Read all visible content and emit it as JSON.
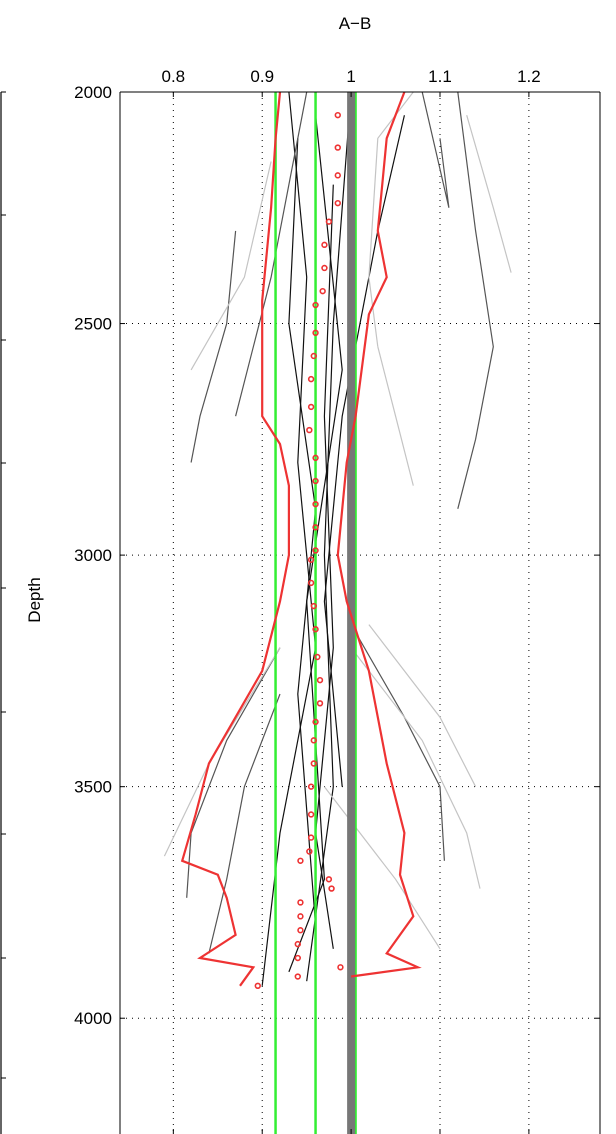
{
  "chart_data": {
    "type": "line",
    "title": "A−B",
    "ylabel": "Depth",
    "x_ticks": [
      "0.8",
      "0.9",
      "1",
      "1.1",
      "1.2"
    ],
    "y_ticks": [
      "2000",
      "2500",
      "3000",
      "3500",
      "4000"
    ],
    "xlim": [
      0.74,
      1.28
    ],
    "ylim": [
      2000,
      4250
    ],
    "y_reversed": true,
    "x_axis_position": "top",
    "grid": "dotted",
    "legend": "none",
    "colors": {
      "red": "#ee3333",
      "green": "#33ee33",
      "gray": "#777777",
      "dark": "#111111",
      "mid": "#555555",
      "light": "#c4c4c4"
    },
    "vertical_lines": [
      {
        "x": 0.915,
        "color": "green"
      },
      {
        "x": 0.96,
        "color": "green"
      },
      {
        "x": 1.005,
        "color": "green"
      },
      {
        "x": 1.0,
        "color": "gray"
      }
    ],
    "red_envelope_left": [
      {
        "x": 0.92,
        "y": 2000
      },
      {
        "x": 0.915,
        "y": 2100
      },
      {
        "x": 0.91,
        "y": 2250
      },
      {
        "x": 0.9,
        "y": 2450
      },
      {
        "x": 0.9,
        "y": 2700
      },
      {
        "x": 0.92,
        "y": 2760
      },
      {
        "x": 0.93,
        "y": 2850
      },
      {
        "x": 0.93,
        "y": 3000
      },
      {
        "x": 0.92,
        "y": 3100
      },
      {
        "x": 0.9,
        "y": 3250
      },
      {
        "x": 0.84,
        "y": 3450
      },
      {
        "x": 0.825,
        "y": 3560
      },
      {
        "x": 0.81,
        "y": 3660
      },
      {
        "x": 0.85,
        "y": 3690
      },
      {
        "x": 0.86,
        "y": 3740
      },
      {
        "x": 0.87,
        "y": 3820
      },
      {
        "x": 0.83,
        "y": 3870
      },
      {
        "x": 0.89,
        "y": 3890
      },
      {
        "x": 0.875,
        "y": 3930
      }
    ],
    "red_envelope_right": [
      {
        "x": 1.06,
        "y": 2000
      },
      {
        "x": 1.04,
        "y": 2100
      },
      {
        "x": 1.03,
        "y": 2300
      },
      {
        "x": 1.04,
        "y": 2400
      },
      {
        "x": 1.02,
        "y": 2480
      },
      {
        "x": 1.005,
        "y": 2700
      },
      {
        "x": 0.995,
        "y": 2800
      },
      {
        "x": 0.985,
        "y": 3000
      },
      {
        "x": 0.995,
        "y": 3100
      },
      {
        "x": 1.02,
        "y": 3250
      },
      {
        "x": 1.04,
        "y": 3450
      },
      {
        "x": 1.06,
        "y": 3600
      },
      {
        "x": 1.055,
        "y": 3690
      },
      {
        "x": 1.07,
        "y": 3780
      },
      {
        "x": 1.04,
        "y": 3860
      },
      {
        "x": 1.075,
        "y": 3890
      },
      {
        "x": 1.0,
        "y": 3910
      }
    ],
    "red_points": [
      {
        "x": 0.985,
        "y": 2050
      },
      {
        "x": 0.985,
        "y": 2120
      },
      {
        "x": 0.985,
        "y": 2180
      },
      {
        "x": 0.985,
        "y": 2240
      },
      {
        "x": 0.975,
        "y": 2280
      },
      {
        "x": 0.97,
        "y": 2330
      },
      {
        "x": 0.97,
        "y": 2380
      },
      {
        "x": 0.968,
        "y": 2430
      },
      {
        "x": 0.96,
        "y": 2460
      },
      {
        "x": 0.96,
        "y": 2520
      },
      {
        "x": 0.958,
        "y": 2570
      },
      {
        "x": 0.955,
        "y": 2620
      },
      {
        "x": 0.955,
        "y": 2680
      },
      {
        "x": 0.953,
        "y": 2730
      },
      {
        "x": 0.96,
        "y": 2790
      },
      {
        "x": 0.96,
        "y": 2840
      },
      {
        "x": 0.96,
        "y": 2890
      },
      {
        "x": 0.96,
        "y": 2940
      },
      {
        "x": 0.96,
        "y": 2990
      },
      {
        "x": 0.955,
        "y": 3010
      },
      {
        "x": 0.955,
        "y": 3060
      },
      {
        "x": 0.958,
        "y": 3110
      },
      {
        "x": 0.96,
        "y": 3160
      },
      {
        "x": 0.962,
        "y": 3220
      },
      {
        "x": 0.965,
        "y": 3270
      },
      {
        "x": 0.965,
        "y": 3320
      },
      {
        "x": 0.96,
        "y": 3360
      },
      {
        "x": 0.958,
        "y": 3400
      },
      {
        "x": 0.958,
        "y": 3450
      },
      {
        "x": 0.955,
        "y": 3500
      },
      {
        "x": 0.955,
        "y": 3560
      },
      {
        "x": 0.955,
        "y": 3610
      },
      {
        "x": 0.953,
        "y": 3640
      },
      {
        "x": 0.943,
        "y": 3660
      },
      {
        "x": 0.975,
        "y": 3700
      },
      {
        "x": 0.978,
        "y": 3720
      },
      {
        "x": 0.943,
        "y": 3750
      },
      {
        "x": 0.943,
        "y": 3780
      },
      {
        "x": 0.943,
        "y": 3810
      },
      {
        "x": 0.94,
        "y": 3840
      },
      {
        "x": 0.94,
        "y": 3870
      },
      {
        "x": 0.988,
        "y": 3890
      },
      {
        "x": 0.94,
        "y": 3910
      },
      {
        "x": 0.895,
        "y": 3930
      }
    ],
    "gray_curves": [
      {
        "tone": "dark",
        "points": [
          {
            "x": 0.93,
            "y": 2000
          },
          {
            "x": 0.95,
            "y": 2400
          },
          {
            "x": 0.94,
            "y": 2800
          },
          {
            "x": 0.96,
            "y": 3200
          },
          {
            "x": 0.92,
            "y": 3600
          },
          {
            "x": 0.9,
            "y": 3930
          }
        ]
      },
      {
        "tone": "dark",
        "points": [
          {
            "x": 1.0,
            "y": 2000
          },
          {
            "x": 0.98,
            "y": 2500
          },
          {
            "x": 0.97,
            "y": 3000
          },
          {
            "x": 0.98,
            "y": 3500
          },
          {
            "x": 0.95,
            "y": 3920
          }
        ]
      },
      {
        "tone": "dark",
        "points": [
          {
            "x": 0.96,
            "y": 2050
          },
          {
            "x": 0.99,
            "y": 2600
          },
          {
            "x": 0.95,
            "y": 3100
          },
          {
            "x": 0.97,
            "y": 3700
          },
          {
            "x": 0.93,
            "y": 3900
          }
        ]
      },
      {
        "tone": "dark",
        "points": [
          {
            "x": 1.06,
            "y": 2050
          },
          {
            "x": 1.03,
            "y": 2300
          },
          {
            "x": 0.99,
            "y": 2700
          },
          {
            "x": 0.97,
            "y": 3100
          },
          {
            "x": 0.99,
            "y": 3500
          }
        ]
      },
      {
        "tone": "dark",
        "points": [
          {
            "x": 0.94,
            "y": 2100
          },
          {
            "x": 0.93,
            "y": 2500
          },
          {
            "x": 0.96,
            "y": 2900
          },
          {
            "x": 0.94,
            "y": 3300
          },
          {
            "x": 0.96,
            "y": 3800
          }
        ]
      },
      {
        "tone": "dark",
        "points": [
          {
            "x": 0.98,
            "y": 2200
          },
          {
            "x": 0.97,
            "y": 2700
          },
          {
            "x": 0.98,
            "y": 3200
          },
          {
            "x": 0.96,
            "y": 3600
          },
          {
            "x": 0.98,
            "y": 3850
          }
        ]
      },
      {
        "tone": "mid",
        "points": [
          {
            "x": 0.87,
            "y": 2300
          },
          {
            "x": 0.86,
            "y": 2500
          },
          {
            "x": 0.83,
            "y": 2700
          },
          {
            "x": 0.82,
            "y": 2800
          }
        ]
      },
      {
        "tone": "mid",
        "points": [
          {
            "x": 0.95,
            "y": 2000
          },
          {
            "x": 0.91,
            "y": 2400
          },
          {
            "x": 0.87,
            "y": 2700
          }
        ]
      },
      {
        "tone": "mid",
        "points": [
          {
            "x": 0.92,
            "y": 3200
          },
          {
            "x": 0.86,
            "y": 3400
          },
          {
            "x": 0.82,
            "y": 3600
          },
          {
            "x": 0.815,
            "y": 3740
          }
        ]
      },
      {
        "tone": "mid",
        "points": [
          {
            "x": 0.92,
            "y": 3300
          },
          {
            "x": 0.88,
            "y": 3500
          },
          {
            "x": 0.86,
            "y": 3700
          },
          {
            "x": 0.84,
            "y": 3860
          }
        ]
      },
      {
        "tone": "mid",
        "points": [
          {
            "x": 1.0,
            "y": 3150
          },
          {
            "x": 1.06,
            "y": 3350
          },
          {
            "x": 1.1,
            "y": 3500
          },
          {
            "x": 1.105,
            "y": 3660
          }
        ]
      },
      {
        "tone": "mid",
        "points": [
          {
            "x": 1.12,
            "y": 2000
          },
          {
            "x": 1.14,
            "y": 2300
          },
          {
            "x": 1.16,
            "y": 2550
          },
          {
            "x": 1.14,
            "y": 2750
          },
          {
            "x": 1.12,
            "y": 2900
          }
        ]
      },
      {
        "tone": "mid",
        "points": [
          {
            "x": 1.1,
            "y": 2100
          },
          {
            "x": 1.11,
            "y": 2250
          },
          {
            "x": 1.08,
            "y": 2000
          }
        ]
      },
      {
        "tone": "light",
        "points": [
          {
            "x": 0.91,
            "y": 2150
          },
          {
            "x": 0.88,
            "y": 2400
          },
          {
            "x": 0.82,
            "y": 2600
          }
        ]
      },
      {
        "tone": "light",
        "points": [
          {
            "x": 1.07,
            "y": 2000
          },
          {
            "x": 1.03,
            "y": 2100
          },
          {
            "x": 1.02,
            "y": 2400
          },
          {
            "x": 1.03,
            "y": 2550
          }
        ]
      },
      {
        "tone": "light",
        "points": [
          {
            "x": 1.13,
            "y": 2050
          },
          {
            "x": 1.16,
            "y": 2250
          },
          {
            "x": 1.18,
            "y": 2390
          }
        ]
      },
      {
        "tone": "light",
        "points": [
          {
            "x": 1.03,
            "y": 2550
          },
          {
            "x": 1.05,
            "y": 2700
          },
          {
            "x": 1.07,
            "y": 2850
          }
        ]
      },
      {
        "tone": "light",
        "points": [
          {
            "x": 0.92,
            "y": 3200
          },
          {
            "x": 0.84,
            "y": 3450
          },
          {
            "x": 0.79,
            "y": 3650
          }
        ]
      },
      {
        "tone": "light",
        "points": [
          {
            "x": 1.0,
            "y": 3200
          },
          {
            "x": 1.08,
            "y": 3400
          },
          {
            "x": 1.13,
            "y": 3600
          },
          {
            "x": 1.145,
            "y": 3720
          }
        ]
      },
      {
        "tone": "light",
        "points": [
          {
            "x": 1.02,
            "y": 3150
          },
          {
            "x": 1.1,
            "y": 3350
          },
          {
            "x": 1.14,
            "y": 3500
          }
        ]
      },
      {
        "tone": "light",
        "points": [
          {
            "x": 0.97,
            "y": 3500
          },
          {
            "x": 1.05,
            "y": 3700
          },
          {
            "x": 1.1,
            "y": 3850
          }
        ]
      }
    ]
  }
}
